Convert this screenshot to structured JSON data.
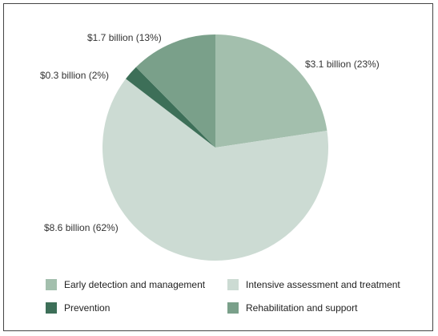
{
  "chart_data": {
    "type": "pie",
    "title": "",
    "start_angle_deg": 0,
    "colors": {
      "early": "#a3bfad",
      "intensive": "#ccdbd3",
      "prevention": "#3d6f58",
      "rehab": "#7aa08a"
    },
    "slices": [
      {
        "key": "early",
        "category": "Early detection and management",
        "value": 3.1,
        "percent": 23,
        "label": "$3.1 billion (23%)"
      },
      {
        "key": "intensive",
        "category": "Intensive assessment and treatment",
        "value": 8.6,
        "percent": 62,
        "label": "$8.6 billion (62%)"
      },
      {
        "key": "prevention",
        "category": "Prevention",
        "value": 0.3,
        "percent": 2,
        "label": "$0.3 billion (2%)"
      },
      {
        "key": "rehab",
        "category": "Rehabilitation and support",
        "value": 1.7,
        "percent": 13,
        "label": "$1.7 billion (13%)"
      }
    ],
    "legend": {
      "placement": "bottom",
      "columns": 2,
      "items": [
        {
          "key": "early",
          "text": "Early detection and management"
        },
        {
          "key": "intensive",
          "text": "Intensive assessment and treatment"
        },
        {
          "key": "prevention",
          "text": "Prevention"
        },
        {
          "key": "rehab",
          "text": "Rehabilitation and support"
        }
      ]
    }
  }
}
